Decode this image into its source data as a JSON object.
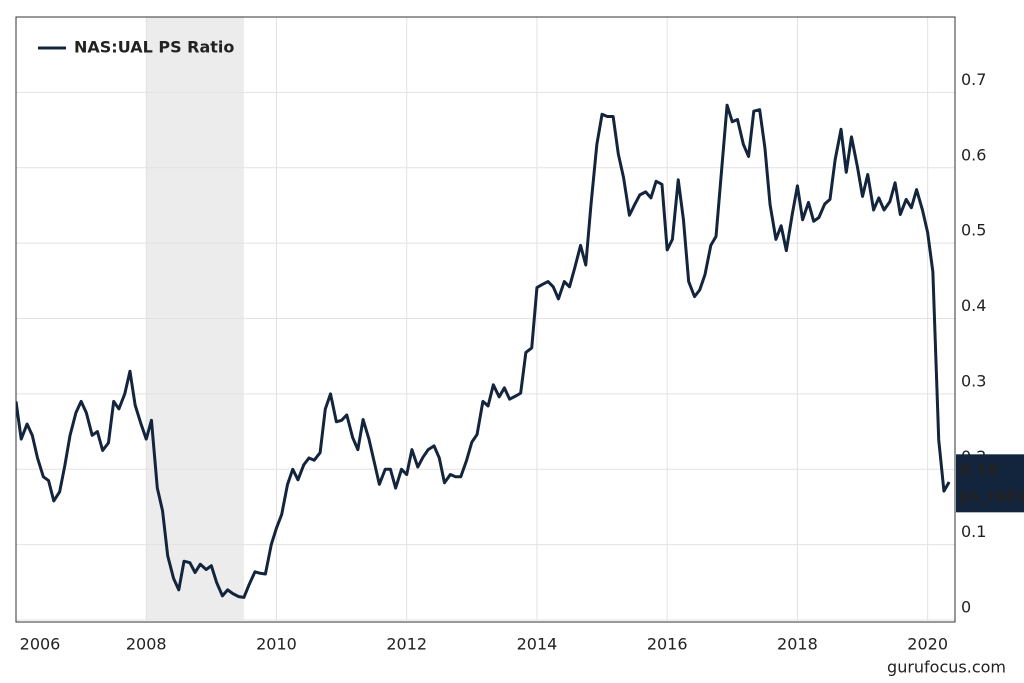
{
  "chart_data": {
    "type": "line",
    "x": [
      2006.0,
      2006.08,
      2006.17,
      2006.25,
      2006.33,
      2006.42,
      2006.5,
      2006.58,
      2006.67,
      2006.75,
      2006.83,
      2006.92,
      2007.0,
      2007.08,
      2007.17,
      2007.25,
      2007.33,
      2007.42,
      2007.5,
      2007.58,
      2007.67,
      2007.75,
      2007.83,
      2007.92,
      2008.0,
      2008.08,
      2008.17,
      2008.25,
      2008.33,
      2008.42,
      2008.5,
      2008.58,
      2008.67,
      2008.75,
      2008.83,
      2008.92,
      2009.0,
      2009.08,
      2009.17,
      2009.25,
      2009.33,
      2009.42,
      2009.5,
      2009.58,
      2009.67,
      2009.75,
      2009.83,
      2009.92,
      2010.0,
      2010.08,
      2010.17,
      2010.25,
      2010.33,
      2010.42,
      2010.5,
      2010.58,
      2010.67,
      2010.75,
      2010.83,
      2010.92,
      2011.0,
      2011.08,
      2011.17,
      2011.25,
      2011.33,
      2011.42,
      2011.5,
      2011.58,
      2011.67,
      2011.75,
      2011.83,
      2011.92,
      2012.0,
      2012.08,
      2012.17,
      2012.25,
      2012.33,
      2012.42,
      2012.5,
      2012.58,
      2012.67,
      2012.75,
      2012.83,
      2012.92,
      2013.0,
      2013.08,
      2013.17,
      2013.25,
      2013.33,
      2013.42,
      2013.5,
      2013.58,
      2013.67,
      2013.75,
      2013.83,
      2013.92,
      2014.0,
      2014.08,
      2014.17,
      2014.25,
      2014.33,
      2014.42,
      2014.5,
      2014.58,
      2014.67,
      2014.75,
      2014.83,
      2014.92,
      2015.0,
      2015.08,
      2015.17,
      2015.25,
      2015.33,
      2015.42,
      2015.5,
      2015.58,
      2015.67,
      2015.75,
      2015.83,
      2015.92,
      2016.0,
      2016.08,
      2016.17,
      2016.25,
      2016.33,
      2016.42,
      2016.5,
      2016.58,
      2016.67,
      2016.75,
      2016.83,
      2016.92,
      2017.0,
      2017.08,
      2017.17,
      2017.25,
      2017.33,
      2017.42,
      2017.5,
      2017.58,
      2017.67,
      2017.75,
      2017.83,
      2017.92,
      2018.0,
      2018.08,
      2018.17,
      2018.25,
      2018.33,
      2018.42,
      2018.5,
      2018.58,
      2018.67,
      2018.75,
      2018.83,
      2018.92,
      2019.0,
      2019.08,
      2019.17,
      2019.25,
      2019.33,
      2019.42,
      2019.5,
      2019.58,
      2019.67,
      2019.75,
      2019.83,
      2019.92,
      2020.0,
      2020.08,
      2020.17,
      2020.25,
      2020.33
    ],
    "series": [
      {
        "name": "NAS:UAL PS Ratio",
        "color": "#13243d",
        "values": [
          0.29,
          0.24,
          0.26,
          0.245,
          0.215,
          0.19,
          0.185,
          0.158,
          0.17,
          0.205,
          0.245,
          0.275,
          0.29,
          0.275,
          0.245,
          0.25,
          0.225,
          0.235,
          0.29,
          0.28,
          0.3,
          0.33,
          0.285,
          0.26,
          0.24,
          0.265,
          0.175,
          0.145,
          0.085,
          0.055,
          0.04,
          0.078,
          0.076,
          0.063,
          0.074,
          0.067,
          0.072,
          0.05,
          0.032,
          0.04,
          0.035,
          0.031,
          0.03,
          0.047,
          0.064,
          0.062,
          0.061,
          0.1,
          0.122,
          0.14,
          0.18,
          0.2,
          0.186,
          0.206,
          0.215,
          0.212,
          0.222,
          0.28,
          0.3,
          0.263,
          0.265,
          0.272,
          0.242,
          0.226,
          0.266,
          0.24,
          0.21,
          0.18,
          0.2,
          0.2,
          0.175,
          0.2,
          0.193,
          0.226,
          0.203,
          0.216,
          0.226,
          0.231,
          0.215,
          0.182,
          0.193,
          0.19,
          0.19,
          0.212,
          0.236,
          0.246,
          0.29,
          0.284,
          0.312,
          0.296,
          0.308,
          0.293,
          0.297,
          0.301,
          0.355,
          0.361,
          0.441,
          0.445,
          0.449,
          0.442,
          0.426,
          0.449,
          0.442,
          0.467,
          0.497,
          0.471,
          0.551,
          0.631,
          0.671,
          0.668,
          0.668,
          0.618,
          0.587,
          0.537,
          0.551,
          0.564,
          0.568,
          0.56,
          0.582,
          0.578,
          0.491,
          0.505,
          0.584,
          0.531,
          0.449,
          0.429,
          0.438,
          0.458,
          0.497,
          0.509,
          0.591,
          0.683,
          0.661,
          0.664,
          0.631,
          0.615,
          0.675,
          0.677,
          0.627,
          0.551,
          0.505,
          0.523,
          0.49,
          0.538,
          0.576,
          0.531,
          0.554,
          0.529,
          0.534,
          0.552,
          0.558,
          0.611,
          0.651,
          0.594,
          0.641,
          0.602,
          0.562,
          0.591,
          0.544,
          0.56,
          0.544,
          0.555,
          0.58,
          0.538,
          0.558,
          0.547,
          0.571,
          0.544,
          0.514,
          0.462,
          0.239,
          0.171,
          0.183
        ]
      }
    ],
    "xlim": [
      2006.0,
      2020.42
    ],
    "xticks": [
      2006,
      2008,
      2010,
      2012,
      2014,
      2016,
      2018,
      2020
    ],
    "ylim": [
      0,
      0.8
    ],
    "yticks": [
      0,
      0.1,
      0.2,
      0.3,
      0.4,
      0.5,
      0.6,
      0.7
    ],
    "grid": true,
    "shade": [
      2008.0,
      2009.5
    ],
    "end_label": {
      "value": 0.18,
      "text": "ps_ratio"
    },
    "legend": "top-left",
    "watermark": "gurufocus.com"
  }
}
